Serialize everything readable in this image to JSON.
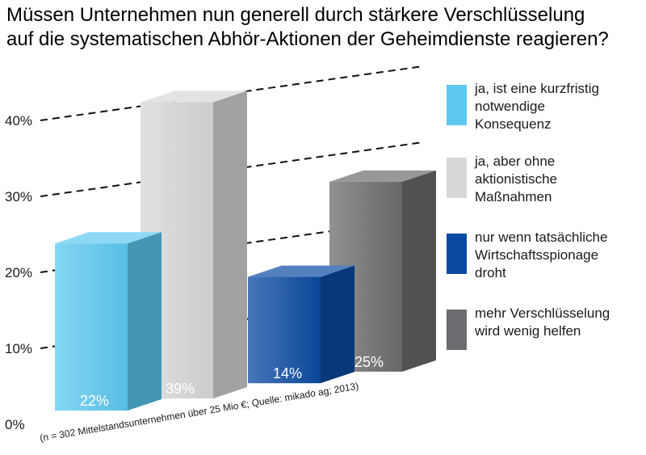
{
  "chart_data": {
    "type": "bar",
    "title_lines": [
      "Müssen Unternehmen nun generell durch stärkere Verschlüsselung",
      "auf die systematischen Abhör-Aktionen der Geheimdienste reagieren?"
    ],
    "y_ticks": [
      "0%",
      "10%",
      "20%",
      "30%",
      "40%"
    ],
    "ylim": [
      0,
      45
    ],
    "grid": true,
    "legend_position": "right",
    "source_note": "(n = 302 Mittelstandsunternehmen über 25 Mio €; Quelle: mikado ag; 2013)",
    "series": [
      {
        "label_lines": [
          "ja, ist eine kurzfristig",
          "notwendige",
          "Konsequenz"
        ],
        "value": 22,
        "value_label": "22%",
        "color": "#5cc8f0"
      },
      {
        "label_lines": [
          "ja, aber ohne",
          "aktionistische",
          "Maßnahmen"
        ],
        "value": 39,
        "value_label": "39%",
        "color": "#d6d7d9"
      },
      {
        "label_lines": [
          "nur wenn tatsächliche",
          "Wirtschaftsspionage",
          "droht"
        ],
        "value": 14,
        "value_label": "14%",
        "color": "#0a4aa0"
      },
      {
        "label_lines": [
          "mehr Verschlüsselung",
          "wird wenig helfen"
        ],
        "value": 25,
        "value_label": "25%",
        "color": "#6a6c6f"
      }
    ]
  }
}
